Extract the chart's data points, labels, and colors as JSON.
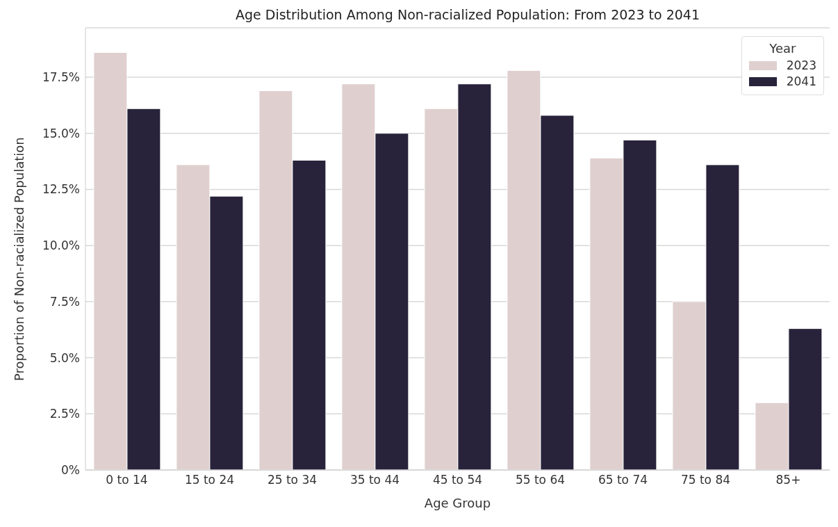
{
  "chart_data": {
    "type": "bar",
    "title": "Age Distribution Among Non-racialized Population: From 2023 to 2041",
    "xlabel": "Age Group",
    "ylabel": "Proportion of Non-racialized Population",
    "legend_title": "Year",
    "categories": [
      "0 to 14",
      "15 to 24",
      "25 to 34",
      "35 to 44",
      "45 to 54",
      "55 to 64",
      "65 to 74",
      "75 to 84",
      "85+"
    ],
    "series": [
      {
        "name": "2023",
        "color": "#dfd0cf",
        "values": [
          18.6,
          13.6,
          16.9,
          17.2,
          16.1,
          17.8,
          13.9,
          7.5,
          3.0
        ]
      },
      {
        "name": "2041",
        "color": "#28233a",
        "values": [
          16.1,
          12.2,
          13.8,
          15.0,
          17.2,
          15.8,
          14.7,
          13.6,
          6.3
        ]
      }
    ],
    "ylim": [
      0,
      19.7
    ],
    "yticks": [
      {
        "value": 0,
        "label": "0%"
      },
      {
        "value": 2.5,
        "label": "2.5%"
      },
      {
        "value": 5,
        "label": "5.0%"
      },
      {
        "value": 7.5,
        "label": "7.5%"
      },
      {
        "value": 10,
        "label": "10.0%"
      },
      {
        "value": 12.5,
        "label": "12.5%"
      },
      {
        "value": 15,
        "label": "15.0%"
      },
      {
        "value": 17.5,
        "label": "17.5%"
      }
    ],
    "grid": "y",
    "legend": "top right"
  }
}
